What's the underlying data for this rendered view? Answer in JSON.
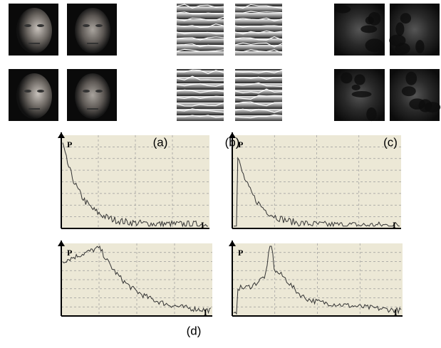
{
  "figure": {
    "panel_labels": [
      "(a)",
      "(b)",
      "(c)",
      "(d)"
    ],
    "y_axis_label": "P",
    "x_axis_label": "I"
  }
}
